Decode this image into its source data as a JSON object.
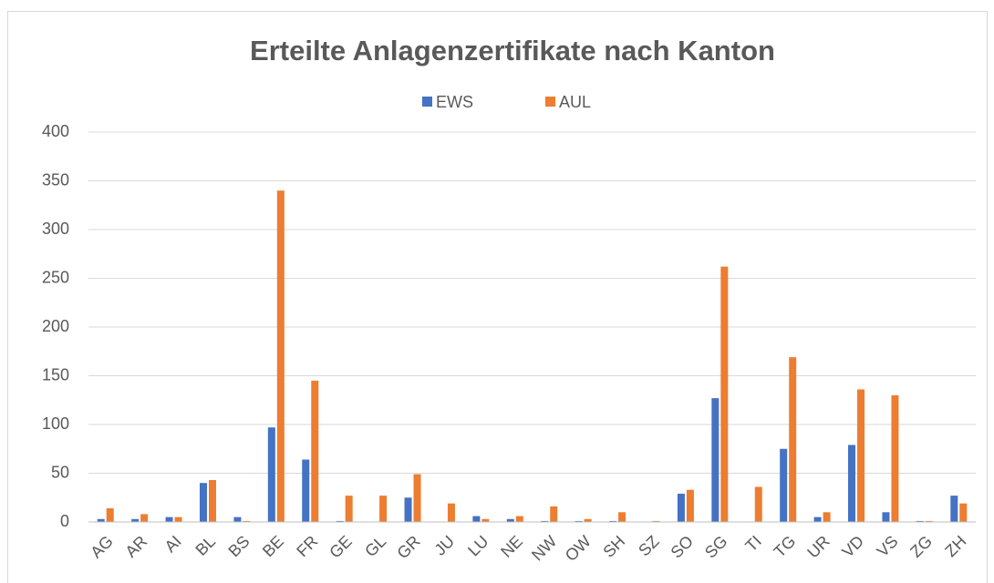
{
  "chart_data": {
    "type": "bar",
    "title": "Erteilte Anlagenzertifikate nach Kanton",
    "categories": [
      "AG",
      "AR",
      "AI",
      "BL",
      "BS",
      "BE",
      "FR",
      "GE",
      "GL",
      "GR",
      "JU",
      "LU",
      "NE",
      "NW",
      "OW",
      "SH",
      "SZ",
      "SO",
      "SG",
      "TI",
      "TG",
      "UR",
      "VD",
      "VS",
      "ZG",
      "ZH"
    ],
    "series": [
      {
        "name": "EWS",
        "color": "#4472c4",
        "values": [
          3,
          3,
          5,
          40,
          5,
          97,
          64,
          1,
          0,
          25,
          0,
          6,
          3,
          1,
          1,
          1,
          0,
          29,
          127,
          0,
          75,
          5,
          79,
          10,
          1,
          27
        ]
      },
      {
        "name": "AUL",
        "color": "#ed7d31",
        "values": [
          14,
          8,
          5,
          43,
          1,
          340,
          145,
          27,
          27,
          49,
          19,
          3,
          6,
          16,
          3,
          10,
          1,
          33,
          262,
          36,
          169,
          10,
          136,
          130,
          1,
          19
        ]
      }
    ],
    "ylim": [
      0,
      400
    ],
    "yticks": [
      0,
      50,
      100,
      150,
      200,
      250,
      300,
      350,
      400
    ],
    "grid": true,
    "legend": "top"
  }
}
